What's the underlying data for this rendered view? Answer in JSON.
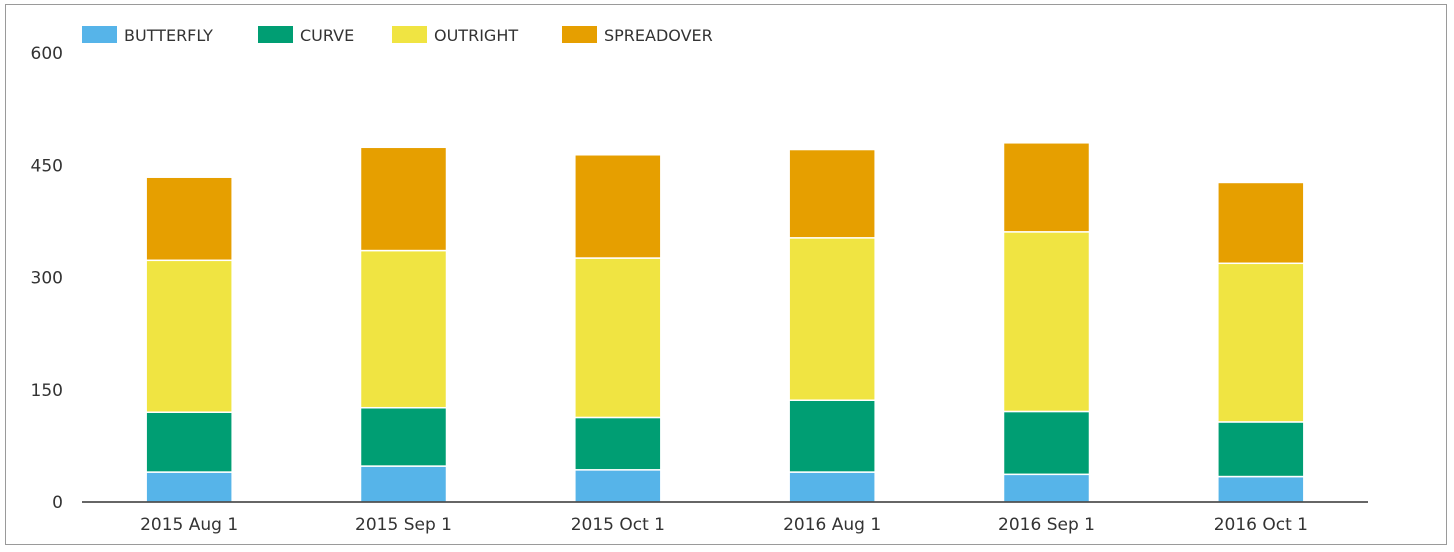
{
  "chart_data": {
    "type": "bar",
    "stacked": true,
    "categories": [
      "2015 Aug 1",
      "2015 Sep 1",
      "2015 Oct 1",
      "2016 Aug 1",
      "2016 Sep 1",
      "2016 Oct 1"
    ],
    "series": [
      {
        "name": "BUTTERFLY",
        "color": "#56b4e9",
        "values": [
          40,
          48,
          43,
          40,
          37,
          34
        ]
      },
      {
        "name": "CURVE",
        "color": "#009e73",
        "values": [
          80,
          78,
          70,
          96,
          84,
          73
        ]
      },
      {
        "name": "OUTRIGHT",
        "color": "#f0e442",
        "values": [
          203,
          210,
          213,
          217,
          240,
          212
        ]
      },
      {
        "name": "SPREADOVER",
        "color": "#e69f00",
        "values": [
          111,
          138,
          138,
          118,
          119,
          108
        ]
      }
    ],
    "yticks": [
      "0",
      "150",
      "300",
      "450",
      "600"
    ],
    "ylim": [
      0,
      600
    ],
    "legend_position": "top-left",
    "grid": false
  }
}
